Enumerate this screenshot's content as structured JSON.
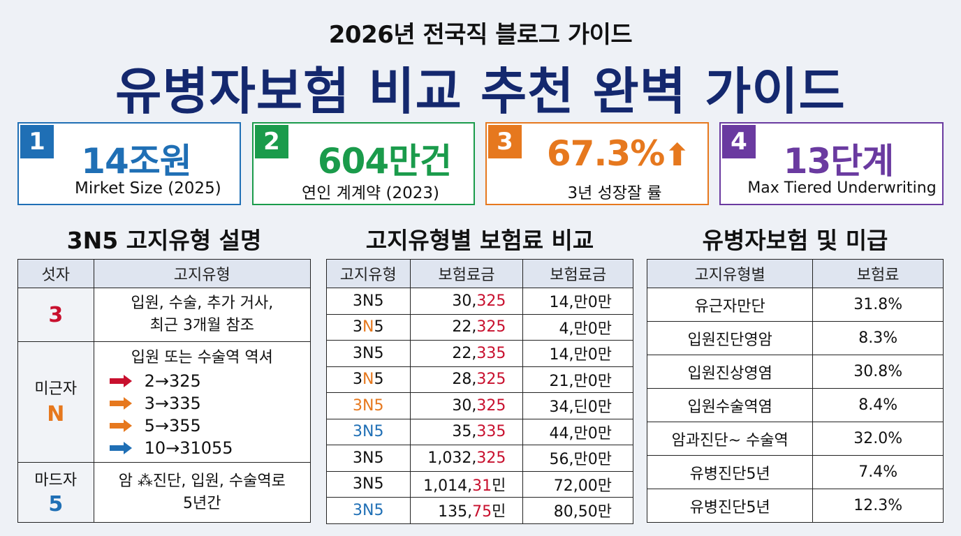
{
  "header": {
    "subtitle": "2026년 전국직 블로그 가이드",
    "title": "유병자보험 비교 추천 완벽 가이드"
  },
  "stats": [
    {
      "num": "1",
      "value": "14조원",
      "label": "Mirket Size (2025)",
      "color": "#1f6fb5"
    },
    {
      "num": "2",
      "value": "604만건",
      "label": "연인 계계약 (2023)",
      "color": "#1a9b4b"
    },
    {
      "num": "3",
      "value": "67.3%",
      "arrow": "⬆",
      "label": "3년 성장잘 률",
      "color": "#e6781e"
    },
    {
      "num": "4",
      "value": "13단계",
      "label": "Max Tiered Underwriting",
      "color": "#6a3aa0"
    }
  ],
  "sections": {
    "left_title": "3N5 고지유형 설명",
    "middle_title": "고지유형별 보험료 비교",
    "right_title": "유병자보험 및 미급"
  },
  "table1": {
    "headers": [
      "섯자",
      "고지유형"
    ],
    "row3": {
      "key": "3",
      "line1": "입원, 수술, 추가 거사,",
      "line2": "최근 3개월  참조"
    },
    "rowN": {
      "key_label": "미근자",
      "key": "N",
      "heading": "입원 또는 수술역 역셔",
      "items": [
        {
          "text": "2→325",
          "color": "#c8102e"
        },
        {
          "text": "3→335",
          "color": "#e6781e"
        },
        {
          "text": "5→355",
          "color": "#e6781e"
        },
        {
          "text": "10→31055",
          "color": "#1f6fb5"
        }
      ]
    },
    "row5": {
      "key_label": "마드자",
      "key": "5",
      "line1": "암 ⁂진단, 입원, 수술역로",
      "line2": "5년간"
    }
  },
  "table2": {
    "headers": [
      "고지유형",
      "보험료금",
      "보험료금"
    ],
    "rows": [
      {
        "type": "3N5",
        "type_style": "plain",
        "pre": "30,",
        "hl": "325",
        "post": "",
        "col3": "14,만0만"
      },
      {
        "type_parts": [
          "3",
          "N",
          "5"
        ],
        "type_style": "n-orange",
        "type": "3N5",
        "pre": "22,",
        "hl": "325",
        "post": "",
        "col3": "4,만0만"
      },
      {
        "type": "3N5",
        "type_style": "plain",
        "pre": "22,",
        "hl": "335",
        "post": "",
        "col3": "14,만0만"
      },
      {
        "type_parts": [
          "3",
          "N",
          "5"
        ],
        "type_style": "n-orange",
        "type": "3N5",
        "pre": "28,",
        "hl": "325",
        "post": "",
        "col3": "21,만0만"
      },
      {
        "type": "3N5",
        "type_style": "orange",
        "pre": "30,",
        "hl": "325",
        "post": "",
        "col3": "34,딘0만"
      },
      {
        "type": "3N5",
        "type_style": "blue",
        "pre": "35,",
        "hl": "335",
        "post": "",
        "col3": "44,만0만"
      },
      {
        "type": "3N5",
        "type_style": "plain",
        "pre": "1,032,",
        "hl": "325",
        "post": "",
        "col3": "56,만0만"
      },
      {
        "type": "3N5",
        "type_style": "plain",
        "pre": "1,014,",
        "hl": "31",
        "post": "민",
        "col3": "72,00만"
      },
      {
        "type": "3N5",
        "type_style": "blue",
        "pre": "135,",
        "hl": "75",
        "post": "민",
        "col3": "80,50만"
      }
    ]
  },
  "table3": {
    "headers": [
      "고지유형별",
      "보험료"
    ],
    "rows": [
      {
        "name": "유근자만단",
        "value": "31.8%"
      },
      {
        "name": "입원진단영암",
        "value": "8.3%"
      },
      {
        "name": "입원진상영염",
        "value": "30.8%"
      },
      {
        "name": "입원수술역염",
        "value": "8.4%"
      },
      {
        "name": "암과진단~ 수술역",
        "value": "32.0%"
      },
      {
        "name": "유병진단5년",
        "value": "7.4%"
      },
      {
        "name": "유병진단5년",
        "value": "12.3%"
      }
    ]
  }
}
